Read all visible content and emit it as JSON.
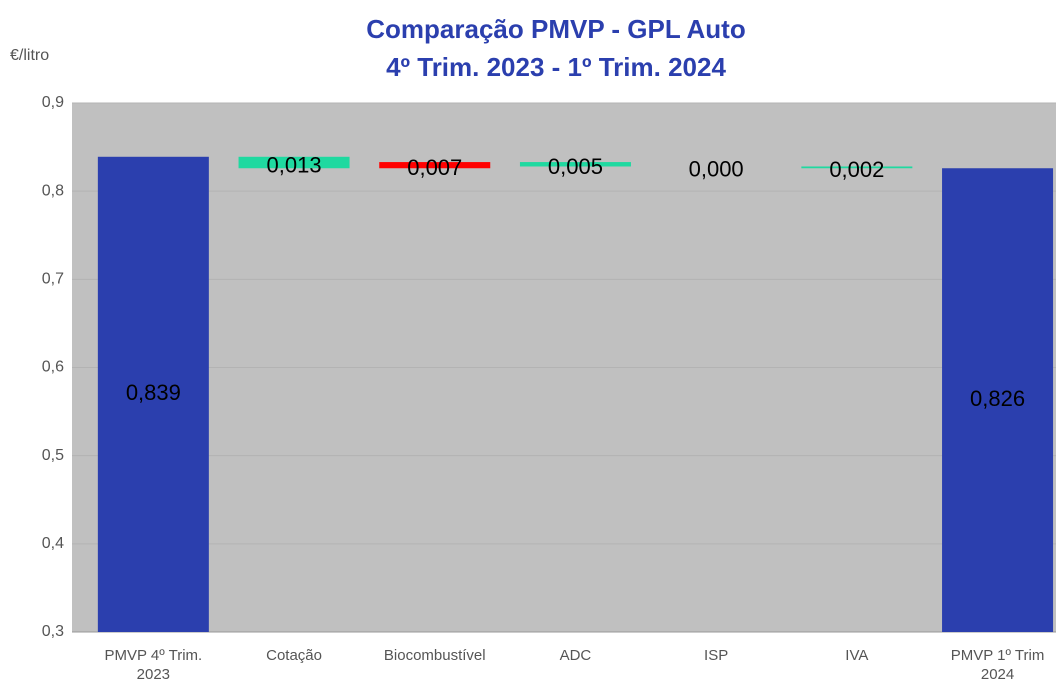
{
  "chart_data": {
    "type": "waterfall",
    "title": "Comparação PMVP - GPL Auto",
    "subtitle": "4º Trim. 2023 - 1º Trim. 2024",
    "y_axis_label": "€/litro",
    "categories": [
      "PMVP 4º Trim.\n2023",
      "Cotação",
      "Biocombustível",
      "ADC",
      "ISP",
      "IVA",
      "PMVP 1º Trim\n2024"
    ],
    "measure": [
      "absolute",
      "relative",
      "relative",
      "relative",
      "relative",
      "relative",
      "total"
    ],
    "values": [
      0.839,
      -0.013,
      0.007,
      -0.005,
      0,
      -0.002,
      0.826
    ],
    "value_labels": [
      "0,839",
      "0,013",
      "0,007",
      "0,005",
      "0,000",
      "0,002",
      "0,826"
    ],
    "colors": {
      "total": "#2b3fae",
      "increase": "#ff0000",
      "decrease": "#1fd9a0"
    },
    "ylim": [
      0.3,
      0.9
    ],
    "yticks": [
      {
        "value": 0.3,
        "label": "0,3"
      },
      {
        "value": 0.4,
        "label": "0,4"
      },
      {
        "value": 0.5,
        "label": "0,5"
      },
      {
        "value": 0.6,
        "label": "0,6"
      },
      {
        "value": 0.7,
        "label": "0,7"
      },
      {
        "value": 0.8,
        "label": "0,8"
      },
      {
        "value": 0.9,
        "label": "0,9"
      }
    ],
    "grid": true
  }
}
